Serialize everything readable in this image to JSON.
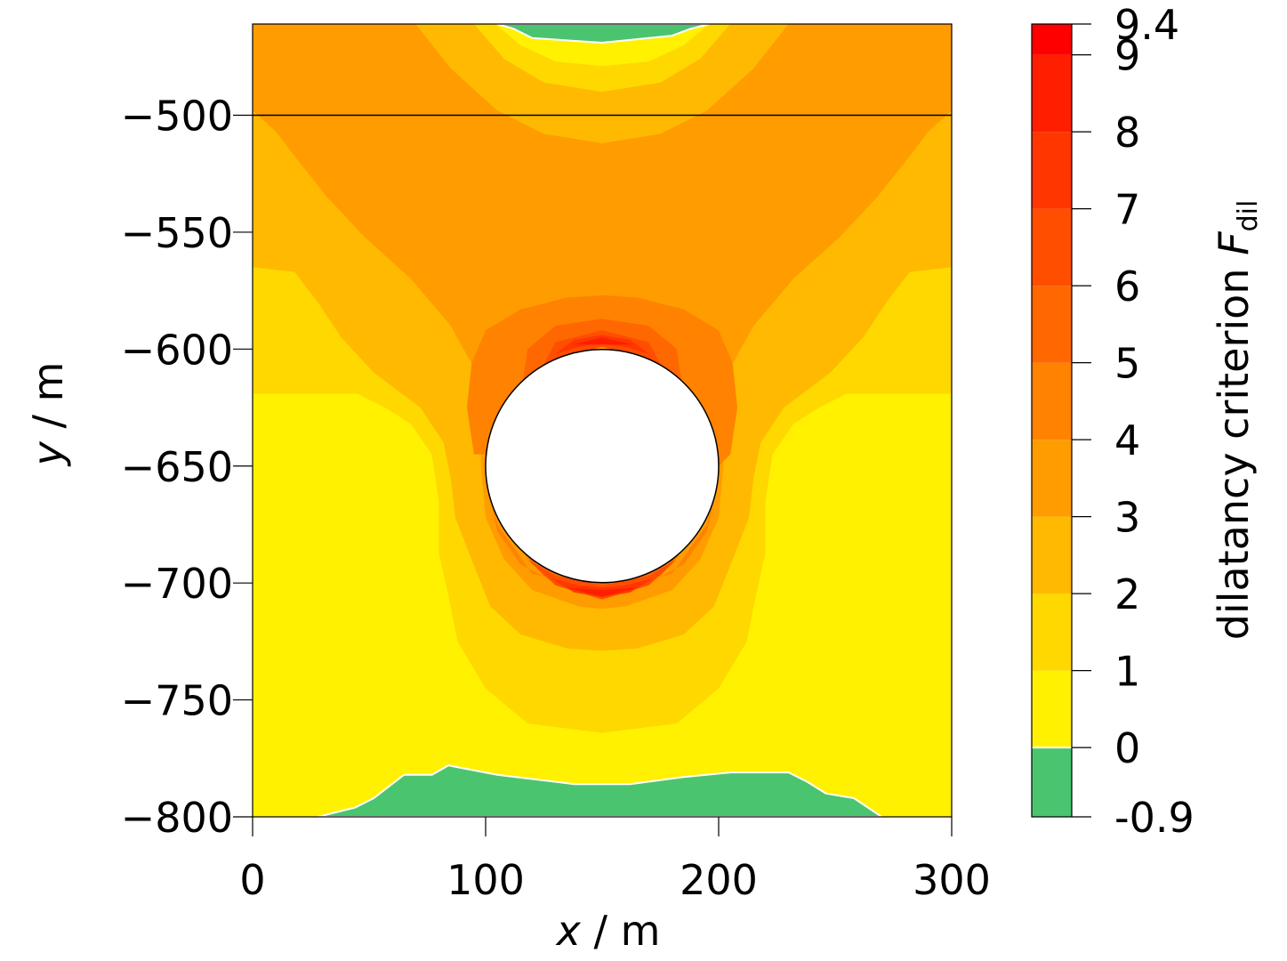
{
  "chart_data": {
    "type": "heatmap",
    "subtype": "filled-contour",
    "xlabel": {
      "var": "x",
      "unit": " / m"
    },
    "ylabel": {
      "var": "y",
      "unit": " / m"
    },
    "xlim": [
      0,
      300
    ],
    "ylim": [
      -800,
      -461
    ],
    "x_ticks": [
      0,
      100,
      200,
      300
    ],
    "x_tick_labels": [
      "0",
      "100",
      "200",
      "300"
    ],
    "y_ticks": [
      -500,
      -550,
      -600,
      -650,
      -700,
      -750,
      -800
    ],
    "y_tick_labels": [
      "−500",
      "−550",
      "−600",
      "−650",
      "−700",
      "−750",
      "−800"
    ],
    "horizontal_line_y": -500,
    "cavity": {
      "center_x": 150,
      "center_y": -650,
      "radius": 50
    },
    "colorbar": {
      "label": "dilatancy criterion ",
      "label_symbol": "F",
      "label_subscript": "dil",
      "levels": [
        -0.9,
        0,
        1,
        2,
        3,
        4,
        5,
        6,
        7,
        8,
        9,
        9.4
      ],
      "tick_labels": [
        "-0.9",
        "0",
        "1",
        "2",
        "3",
        "4",
        "5",
        "6",
        "7",
        "8",
        "9",
        "9.4"
      ],
      "colors": [
        "#4bc470",
        "#fff100",
        "#ffd800",
        "#ffb900",
        "#ff9c00",
        "#ff8200",
        "#ff6700",
        "#ff4e00",
        "#ff3600",
        "#ff1e00",
        "#ff0000"
      ]
    },
    "level_regions": [
      {
        "level_index": 2,
        "polygon": [
          [
            0,
            -461
          ],
          [
            300,
            -461
          ],
          [
            300,
            -619
          ],
          [
            255,
            -619
          ],
          [
            243,
            -625
          ],
          [
            232,
            -632
          ],
          [
            223,
            -645
          ],
          [
            220,
            -665
          ],
          [
            220,
            -687
          ],
          [
            216,
            -705
          ],
          [
            212,
            -725
          ],
          [
            200,
            -745
          ],
          [
            182,
            -760
          ],
          [
            150,
            -764
          ],
          [
            118,
            -760
          ],
          [
            100,
            -745
          ],
          [
            88,
            -725
          ],
          [
            84,
            -705
          ],
          [
            80,
            -687
          ],
          [
            80,
            -665
          ],
          [
            77,
            -645
          ],
          [
            68,
            -632
          ],
          [
            57,
            -625
          ],
          [
            45,
            -619
          ],
          [
            0,
            -619
          ]
        ]
      },
      {
        "level_index": 3,
        "polygon": [
          [
            0,
            -461
          ],
          [
            300,
            -461
          ],
          [
            300,
            -565
          ],
          [
            282,
            -567
          ],
          [
            272,
            -580
          ],
          [
            262,
            -595
          ],
          [
            248,
            -610
          ],
          [
            228,
            -625
          ],
          [
            218,
            -640
          ],
          [
            215,
            -655
          ],
          [
            213,
            -672
          ],
          [
            206,
            -690
          ],
          [
            198,
            -710
          ],
          [
            185,
            -722
          ],
          [
            165,
            -728
          ],
          [
            150,
            -729
          ],
          [
            135,
            -728
          ],
          [
            115,
            -722
          ],
          [
            102,
            -710
          ],
          [
            94,
            -690
          ],
          [
            87,
            -672
          ],
          [
            85,
            -655
          ],
          [
            82,
            -640
          ],
          [
            72,
            -625
          ],
          [
            52,
            -610
          ],
          [
            38,
            -595
          ],
          [
            28,
            -580
          ],
          [
            18,
            -567
          ],
          [
            0,
            -565
          ]
        ]
      },
      {
        "level_index": 4,
        "polygon": [
          [
            0,
            -461
          ],
          [
            300,
            -461
          ],
          [
            300,
            -498
          ],
          [
            290,
            -507
          ],
          [
            280,
            -520
          ],
          [
            268,
            -535
          ],
          [
            252,
            -552
          ],
          [
            232,
            -570
          ],
          [
            215,
            -590
          ],
          [
            205,
            -608
          ],
          [
            202,
            -625
          ],
          [
            202,
            -650
          ],
          [
            200,
            -672
          ],
          [
            192,
            -690
          ],
          [
            180,
            -703
          ],
          [
            160,
            -710
          ],
          [
            150,
            -711
          ],
          [
            140,
            -710
          ],
          [
            120,
            -703
          ],
          [
            108,
            -690
          ],
          [
            100,
            -672
          ],
          [
            98,
            -650
          ],
          [
            98,
            -625
          ],
          [
            95,
            -608
          ],
          [
            85,
            -590
          ],
          [
            68,
            -570
          ],
          [
            48,
            -552
          ],
          [
            32,
            -535
          ],
          [
            20,
            -520
          ],
          [
            10,
            -507
          ],
          [
            0,
            -498
          ]
        ]
      },
      {
        "level_index": 5,
        "polygon": [
          [
            115,
            -583
          ],
          [
            135,
            -578
          ],
          [
            150,
            -577
          ],
          [
            165,
            -578
          ],
          [
            185,
            -583
          ],
          [
            200,
            -592
          ],
          [
            206,
            -606
          ],
          [
            208,
            -625
          ],
          [
            205,
            -645
          ],
          [
            200,
            -650
          ],
          [
            190,
            -620
          ],
          [
            170,
            -600
          ],
          [
            150,
            -596
          ],
          [
            130,
            -600
          ],
          [
            110,
            -620
          ],
          [
            100,
            -645
          ],
          [
            95,
            -645
          ],
          [
            92,
            -625
          ],
          [
            94,
            -606
          ],
          [
            100,
            -592
          ]
        ]
      },
      {
        "level_index": 5,
        "polygon": [
          [
            100,
            -655
          ],
          [
            105,
            -678
          ],
          [
            115,
            -692
          ],
          [
            130,
            -700
          ],
          [
            150,
            -702
          ],
          [
            170,
            -700
          ],
          [
            185,
            -692
          ],
          [
            195,
            -678
          ],
          [
            200,
            -655
          ],
          [
            195,
            -675
          ],
          [
            180,
            -696
          ],
          [
            150,
            -704
          ],
          [
            120,
            -696
          ],
          [
            105,
            -675
          ]
        ]
      },
      {
        "level_index": 6,
        "polygon": [
          [
            115,
            -620
          ],
          [
            118,
            -600
          ],
          [
            130,
            -590
          ],
          [
            150,
            -587
          ],
          [
            170,
            -590
          ],
          [
            182,
            -600
          ],
          [
            185,
            -620
          ],
          [
            175,
            -608
          ],
          [
            162,
            -601
          ],
          [
            150,
            -599
          ],
          [
            138,
            -601
          ],
          [
            125,
            -608
          ]
        ]
      },
      {
        "level_index": 6,
        "polygon": [
          [
            110,
            -680
          ],
          [
            125,
            -697
          ],
          [
            150,
            -705
          ],
          [
            175,
            -697
          ],
          [
            190,
            -680
          ],
          [
            178,
            -692
          ],
          [
            150,
            -698
          ],
          [
            122,
            -692
          ]
        ]
      },
      {
        "level_index": 7,
        "polygon": [
          [
            123,
            -610
          ],
          [
            130,
            -597
          ],
          [
            150,
            -592
          ],
          [
            170,
            -597
          ],
          [
            177,
            -610
          ],
          [
            165,
            -603
          ],
          [
            150,
            -599
          ],
          [
            135,
            -603
          ]
        ]
      },
      {
        "level_index": 7,
        "polygon": [
          [
            118,
            -690
          ],
          [
            130,
            -701
          ],
          [
            150,
            -707
          ],
          [
            170,
            -701
          ],
          [
            182,
            -690
          ],
          [
            170,
            -697
          ],
          [
            150,
            -701
          ],
          [
            130,
            -697
          ]
        ]
      },
      {
        "level_index": 8,
        "polygon": [
          [
            130,
            -602
          ],
          [
            138,
            -596
          ],
          [
            150,
            -594
          ],
          [
            162,
            -596
          ],
          [
            170,
            -602
          ],
          [
            160,
            -599
          ],
          [
            150,
            -598
          ],
          [
            140,
            -599
          ]
        ]
      },
      {
        "level_index": 8,
        "polygon": [
          [
            128,
            -698
          ],
          [
            138,
            -704
          ],
          [
            150,
            -706
          ],
          [
            162,
            -704
          ],
          [
            172,
            -698
          ],
          [
            160,
            -701
          ],
          [
            150,
            -702
          ],
          [
            140,
            -701
          ]
        ]
      },
      {
        "level_index": 9,
        "polygon": [
          [
            137,
            -598
          ],
          [
            150,
            -595
          ],
          [
            163,
            -598
          ],
          [
            150,
            -598
          ]
        ]
      },
      {
        "level_index": 9,
        "polygon": [
          [
            135,
            -702
          ],
          [
            150,
            -706
          ],
          [
            165,
            -702
          ],
          [
            150,
            -703
          ]
        ]
      },
      {
        "level_index": 3,
        "polygon": [
          [
            70,
            -461
          ],
          [
            230,
            -461
          ],
          [
            215,
            -480
          ],
          [
            195,
            -498
          ],
          [
            175,
            -508
          ],
          [
            150,
            -512
          ],
          [
            125,
            -508
          ],
          [
            105,
            -498
          ],
          [
            85,
            -480
          ]
        ]
      },
      {
        "level_index": 2,
        "polygon": [
          [
            95,
            -461
          ],
          [
            205,
            -461
          ],
          [
            192,
            -476
          ],
          [
            175,
            -486
          ],
          [
            150,
            -490
          ],
          [
            125,
            -486
          ],
          [
            108,
            -476
          ]
        ]
      },
      {
        "level_index": 1,
        "polygon": [
          [
            104,
            -461
          ],
          [
            196,
            -461
          ],
          [
            185,
            -470
          ],
          [
            170,
            -477
          ],
          [
            150,
            -479
          ],
          [
            130,
            -477
          ],
          [
            115,
            -470
          ]
        ]
      },
      {
        "level_index": 1,
        "polygon": [
          [
            0,
            -800
          ],
          [
            300,
            -800
          ],
          [
            300,
            -619
          ],
          [
            255,
            -619
          ],
          [
            243,
            -625
          ],
          [
            232,
            -632
          ],
          [
            223,
            -645
          ],
          [
            220,
            -665
          ],
          [
            220,
            -687
          ],
          [
            216,
            -705
          ],
          [
            212,
            -725
          ],
          [
            200,
            -745
          ],
          [
            182,
            -760
          ],
          [
            150,
            -764
          ],
          [
            118,
            -760
          ],
          [
            100,
            -745
          ],
          [
            88,
            -725
          ],
          [
            84,
            -705
          ],
          [
            80,
            -687
          ],
          [
            80,
            -665
          ],
          [
            77,
            -645
          ],
          [
            68,
            -632
          ],
          [
            57,
            -625
          ],
          [
            45,
            -619
          ],
          [
            0,
            -619
          ]
        ]
      },
      {
        "level_index": 0,
        "polygon": [
          [
            105,
            -461
          ],
          [
            196,
            -461
          ],
          [
            188,
            -463
          ],
          [
            180,
            -466
          ],
          [
            150,
            -469
          ],
          [
            120,
            -467
          ],
          [
            112,
            -463
          ]
        ]
      },
      {
        "level_index": 0,
        "polygon": [
          [
            28,
            -800
          ],
          [
            44,
            -796
          ],
          [
            52,
            -792
          ],
          [
            65,
            -782
          ],
          [
            77,
            -782
          ],
          [
            84,
            -778
          ],
          [
            105,
            -782
          ],
          [
            138,
            -786
          ],
          [
            162,
            -786
          ],
          [
            185,
            -783
          ],
          [
            205,
            -781
          ],
          [
            230,
            -781
          ],
          [
            238,
            -785
          ],
          [
            246,
            -790
          ],
          [
            258,
            -792
          ],
          [
            270,
            -800
          ]
        ]
      }
    ]
  }
}
